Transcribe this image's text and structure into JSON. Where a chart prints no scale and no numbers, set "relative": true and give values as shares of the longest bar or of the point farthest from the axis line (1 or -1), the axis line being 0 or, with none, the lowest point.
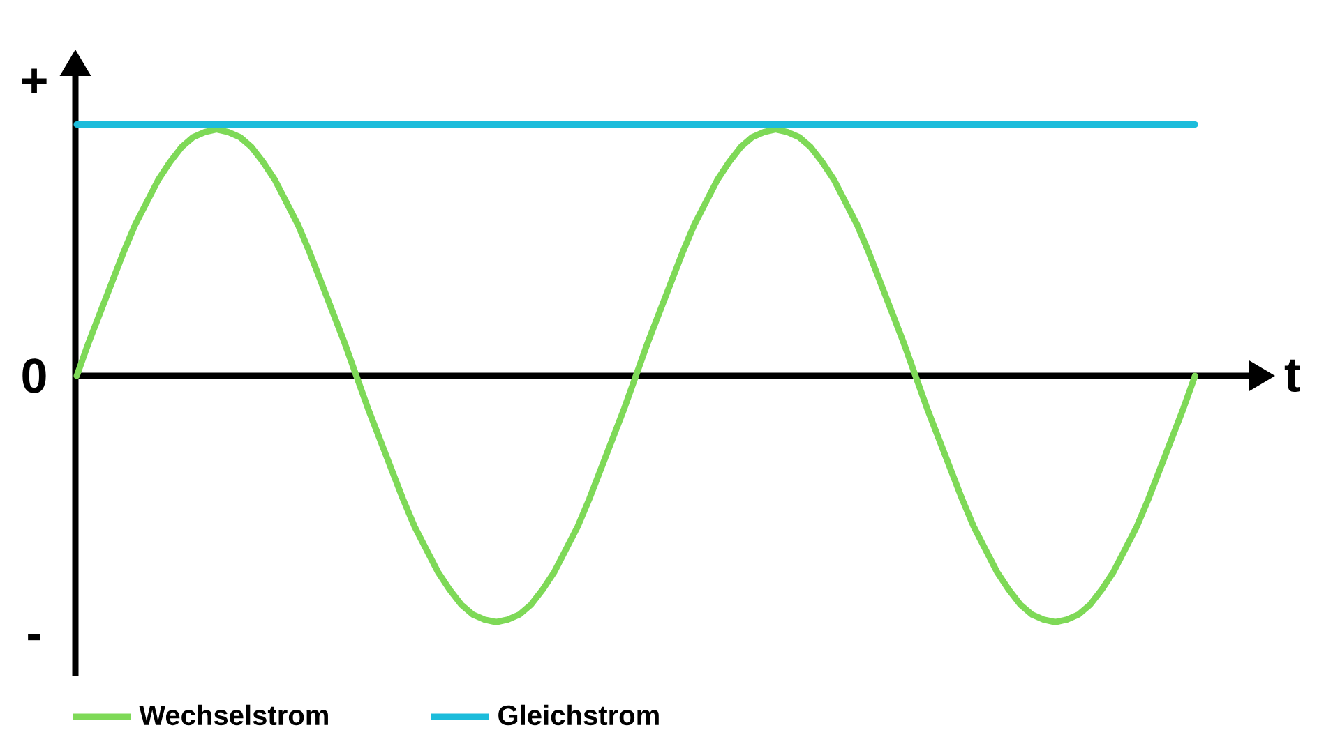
{
  "chart_data": {
    "type": "line",
    "relative": true,
    "xlabel": "t",
    "annotations": [
      "+",
      "0",
      "-"
    ],
    "categories": [
      null,
      null,
      null,
      null,
      null,
      null,
      null,
      null,
      null,
      null,
      null,
      null,
      null,
      null,
      null,
      null,
      null,
      null,
      null,
      null,
      null,
      null,
      null,
      null,
      null,
      null,
      null,
      null,
      null,
      null,
      null,
      null,
      null,
      null,
      null,
      null,
      null,
      null,
      null,
      null,
      null,
      null,
      null,
      null,
      null,
      null,
      null,
      null,
      null,
      null,
      null,
      null,
      null,
      null,
      null,
      null,
      null,
      null,
      null,
      null,
      null,
      null,
      null,
      null,
      null,
      null,
      null,
      null,
      null,
      null,
      null,
      null,
      null,
      null,
      null,
      null,
      null,
      null,
      null,
      null,
      null,
      null,
      null,
      null,
      null,
      null,
      null,
      null,
      null,
      null,
      null,
      null,
      null,
      null,
      null,
      null,
      null
    ],
    "series": [
      {
        "name": "Wechselstrom",
        "color": "#7ed957",
        "values": [
          0,
          0.13,
          0.25,
          0.37,
          0.49,
          0.6,
          0.69,
          0.78,
          0.85,
          0.91,
          0.95,
          0.97,
          0.98,
          0.97,
          0.95,
          0.91,
          0.85,
          0.78,
          0.69,
          0.6,
          0.49,
          0.37,
          0.25,
          0.13,
          0,
          -0.13,
          -0.25,
          -0.37,
          -0.49,
          -0.6,
          -0.69,
          -0.78,
          -0.85,
          -0.91,
          -0.95,
          -0.97,
          -0.98,
          -0.97,
          -0.95,
          -0.91,
          -0.85,
          -0.78,
          -0.69,
          -0.6,
          -0.49,
          -0.37,
          -0.25,
          -0.13,
          0,
          0.13,
          0.25,
          0.37,
          0.49,
          0.6,
          0.69,
          0.78,
          0.85,
          0.91,
          0.95,
          0.97,
          0.98,
          0.97,
          0.95,
          0.91,
          0.85,
          0.78,
          0.69,
          0.6,
          0.49,
          0.37,
          0.25,
          0.13,
          0,
          -0.13,
          -0.25,
          -0.37,
          -0.49,
          -0.6,
          -0.69,
          -0.78,
          -0.85,
          -0.91,
          -0.95,
          -0.97,
          -0.98,
          -0.97,
          -0.95,
          -0.91,
          -0.85,
          -0.78,
          -0.69,
          -0.6,
          -0.49,
          -0.37,
          -0.25,
          -0.13,
          0
        ]
      },
      {
        "name": "Gleichstrom",
        "color": "#1cbcdb",
        "values": [
          1,
          1,
          1,
          1,
          1,
          1,
          1,
          1,
          1,
          1,
          1,
          1,
          1,
          1,
          1,
          1,
          1,
          1,
          1,
          1,
          1,
          1,
          1,
          1,
          1,
          1,
          1,
          1,
          1,
          1,
          1,
          1,
          1,
          1,
          1,
          1,
          1,
          1,
          1,
          1,
          1,
          1,
          1,
          1,
          1,
          1,
          1,
          1,
          1,
          1,
          1,
          1,
          1,
          1,
          1,
          1,
          1,
          1,
          1,
          1,
          1,
          1,
          1,
          1,
          1,
          1,
          1,
          1,
          1,
          1,
          1,
          1,
          1,
          1,
          1,
          1,
          1,
          1,
          1,
          1,
          1,
          1,
          1,
          1,
          1,
          1,
          1,
          1,
          1,
          1,
          1,
          1,
          1,
          1,
          1,
          1,
          1
        ]
      }
    ],
    "legend": "bottom"
  }
}
